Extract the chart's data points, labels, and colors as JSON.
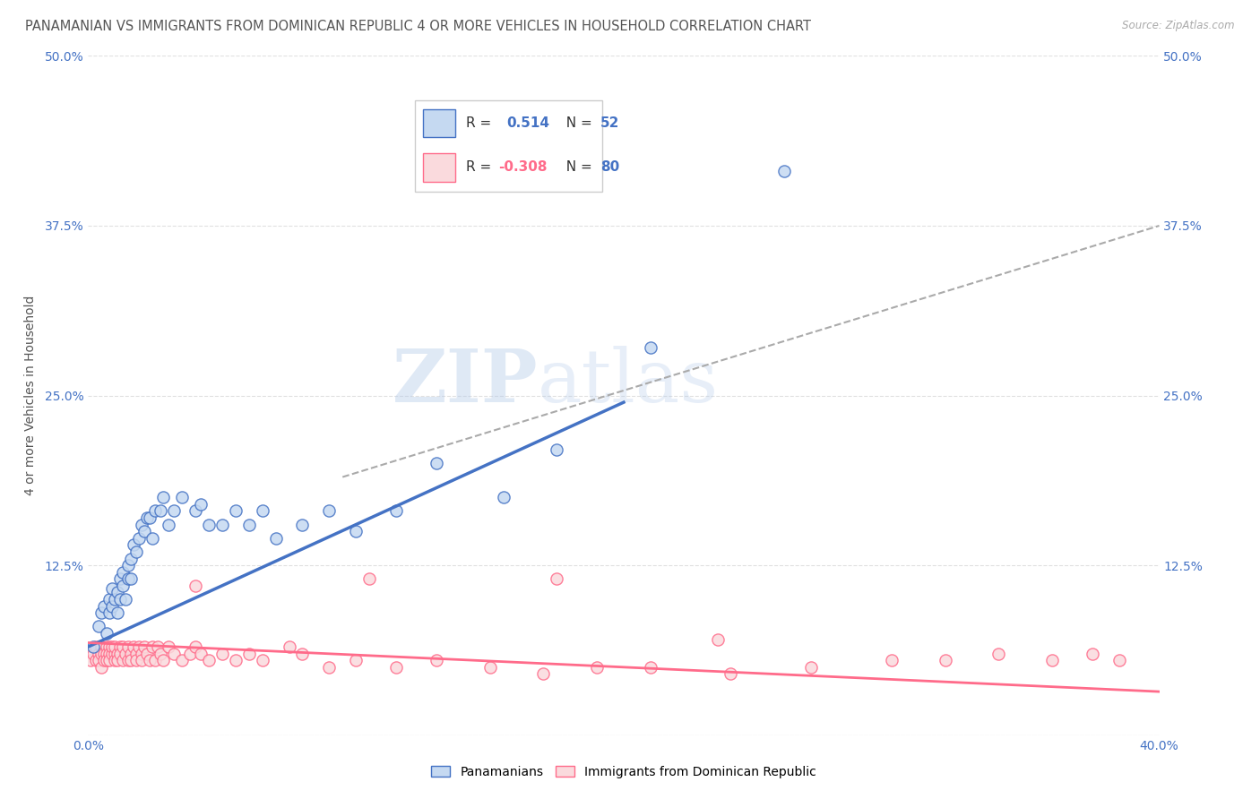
{
  "title": "PANAMANIAN VS IMMIGRANTS FROM DOMINICAN REPUBLIC 4 OR MORE VEHICLES IN HOUSEHOLD CORRELATION CHART",
  "source": "Source: ZipAtlas.com",
  "ylabel": "4 or more Vehicles in Household",
  "xlim": [
    0.0,
    0.4
  ],
  "ylim": [
    0.0,
    0.5
  ],
  "xticks": [
    0.0,
    0.1,
    0.2,
    0.3,
    0.4
  ],
  "yticks": [
    0.0,
    0.125,
    0.25,
    0.375,
    0.5
  ],
  "xticklabels": [
    "0.0%",
    "",
    "",
    "",
    "40.0%"
  ],
  "yticklabels": [
    "",
    "12.5%",
    "25.0%",
    "37.5%",
    "50.0%"
  ],
  "right_yticklabels": [
    "",
    "12.5%",
    "25.0%",
    "37.5%",
    "50.0%"
  ],
  "blue_R": "0.514",
  "blue_N": "52",
  "pink_R": "-0.308",
  "pink_N": "80",
  "blue_fill_color": "#C5D9F1",
  "pink_fill_color": "#FADADD",
  "blue_edge_color": "#4472C4",
  "pink_edge_color": "#FF6B8A",
  "blue_line_color": "#4472C4",
  "pink_line_color": "#FF6B8A",
  "gray_dash_color": "#AAAAAA",
  "watermark_color": "#C8D8E8",
  "background_color": "#FFFFFF",
  "grid_color": "#DDDDDD",
  "title_color": "#555555",
  "tick_color": "#4472C4",
  "label_color": "#555555",
  "blue_scatter_x": [
    0.002,
    0.004,
    0.005,
    0.006,
    0.007,
    0.008,
    0.008,
    0.009,
    0.009,
    0.01,
    0.011,
    0.011,
    0.012,
    0.012,
    0.013,
    0.013,
    0.014,
    0.015,
    0.015,
    0.016,
    0.016,
    0.017,
    0.018,
    0.019,
    0.02,
    0.021,
    0.022,
    0.023,
    0.024,
    0.025,
    0.027,
    0.028,
    0.03,
    0.032,
    0.035,
    0.04,
    0.042,
    0.045,
    0.05,
    0.055,
    0.06,
    0.065,
    0.07,
    0.08,
    0.09,
    0.1,
    0.115,
    0.13,
    0.155,
    0.175,
    0.21,
    0.26
  ],
  "blue_scatter_y": [
    0.065,
    0.08,
    0.09,
    0.095,
    0.075,
    0.09,
    0.1,
    0.095,
    0.108,
    0.1,
    0.09,
    0.105,
    0.1,
    0.115,
    0.11,
    0.12,
    0.1,
    0.115,
    0.125,
    0.115,
    0.13,
    0.14,
    0.135,
    0.145,
    0.155,
    0.15,
    0.16,
    0.16,
    0.145,
    0.165,
    0.165,
    0.175,
    0.155,
    0.165,
    0.175,
    0.165,
    0.17,
    0.155,
    0.155,
    0.165,
    0.155,
    0.165,
    0.145,
    0.155,
    0.165,
    0.15,
    0.165,
    0.2,
    0.175,
    0.21,
    0.285,
    0.415
  ],
  "pink_scatter_x": [
    0.001,
    0.002,
    0.003,
    0.003,
    0.004,
    0.004,
    0.005,
    0.005,
    0.005,
    0.006,
    0.006,
    0.007,
    0.007,
    0.007,
    0.008,
    0.008,
    0.008,
    0.009,
    0.009,
    0.01,
    0.01,
    0.01,
    0.011,
    0.011,
    0.012,
    0.012,
    0.013,
    0.013,
    0.014,
    0.015,
    0.015,
    0.016,
    0.016,
    0.017,
    0.018,
    0.018,
    0.019,
    0.02,
    0.02,
    0.021,
    0.022,
    0.023,
    0.024,
    0.025,
    0.026,
    0.027,
    0.028,
    0.03,
    0.032,
    0.035,
    0.038,
    0.04,
    0.042,
    0.045,
    0.05,
    0.055,
    0.06,
    0.065,
    0.075,
    0.08,
    0.09,
    0.1,
    0.115,
    0.13,
    0.15,
    0.17,
    0.19,
    0.21,
    0.24,
    0.27,
    0.3,
    0.32,
    0.34,
    0.36,
    0.375,
    0.385,
    0.04,
    0.105,
    0.175,
    0.235
  ],
  "pink_scatter_y": [
    0.055,
    0.06,
    0.055,
    0.065,
    0.06,
    0.055,
    0.065,
    0.06,
    0.05,
    0.06,
    0.055,
    0.065,
    0.06,
    0.055,
    0.065,
    0.06,
    0.055,
    0.06,
    0.065,
    0.06,
    0.055,
    0.065,
    0.06,
    0.055,
    0.065,
    0.06,
    0.055,
    0.065,
    0.06,
    0.065,
    0.055,
    0.06,
    0.055,
    0.065,
    0.06,
    0.055,
    0.065,
    0.06,
    0.055,
    0.065,
    0.06,
    0.055,
    0.065,
    0.055,
    0.065,
    0.06,
    0.055,
    0.065,
    0.06,
    0.055,
    0.06,
    0.065,
    0.06,
    0.055,
    0.06,
    0.055,
    0.06,
    0.055,
    0.065,
    0.06,
    0.05,
    0.055,
    0.05,
    0.055,
    0.05,
    0.045,
    0.05,
    0.05,
    0.045,
    0.05,
    0.055,
    0.055,
    0.06,
    0.055,
    0.06,
    0.055,
    0.11,
    0.115,
    0.115,
    0.07
  ],
  "blue_line_x": [
    0.0,
    0.2
  ],
  "blue_line_y": [
    0.065,
    0.245
  ],
  "pink_line_x": [
    0.0,
    0.4
  ],
  "pink_line_y": [
    0.068,
    0.032
  ],
  "gray_line_x": [
    0.095,
    0.4
  ],
  "gray_line_y": [
    0.19,
    0.375
  ],
  "title_fontsize": 10.5,
  "axis_label_fontsize": 10,
  "tick_fontsize": 10,
  "legend_fontsize": 11,
  "scatter_size": 90
}
